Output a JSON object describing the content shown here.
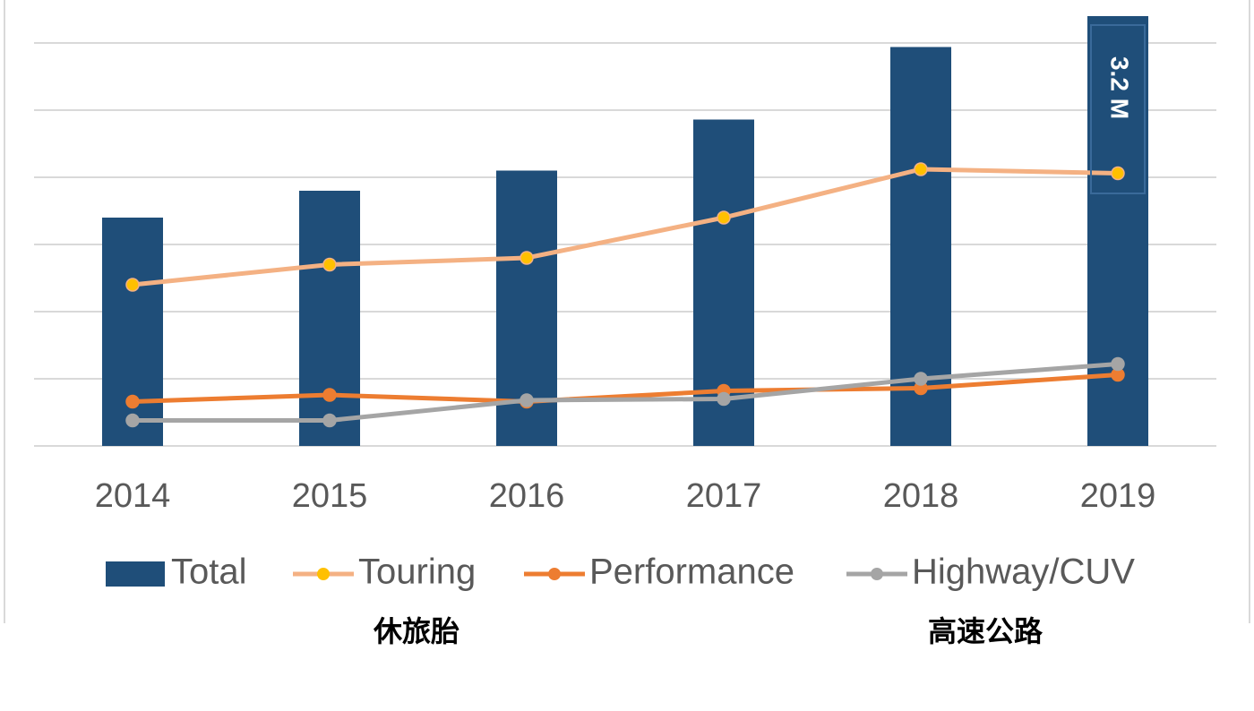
{
  "chart_data": {
    "type": "bar_line",
    "categories": [
      "2014",
      "2015",
      "2016",
      "2017",
      "2018",
      "2019"
    ],
    "series": [
      {
        "name": "Total",
        "type": "bar",
        "color": "#1f4e79",
        "values": [
          1.7,
          1.9,
          2.05,
          2.43,
          2.97,
          3.2
        ],
        "value_labels": [
          null,
          null,
          null,
          null,
          null,
          "3.2 M"
        ]
      },
      {
        "name": "Touring",
        "type": "line",
        "color": "#f4b183",
        "marker_color": "#ffc000",
        "values": [
          1.2,
          1.35,
          1.4,
          1.7,
          2.06,
          2.03
        ]
      },
      {
        "name": "Performance",
        "type": "line",
        "color": "#ed7d31",
        "marker_color": "#ed7d31",
        "values": [
          0.33,
          0.38,
          0.33,
          0.41,
          0.43,
          0.53
        ]
      },
      {
        "name": "Highway/CUV",
        "type": "line",
        "color": "#a5a5a5",
        "marker_color": "#a5a5a5",
        "values": [
          0.19,
          0.19,
          0.34,
          0.35,
          0.5,
          0.61
        ]
      }
    ],
    "ylim": [
      0,
      3
    ],
    "yticks": [
      0,
      0.5,
      1,
      1.5,
      2,
      2.5,
      3
    ],
    "grid": true,
    "legend": "bottom",
    "annotations": [
      "休旅胎",
      "高速公路"
    ]
  }
}
